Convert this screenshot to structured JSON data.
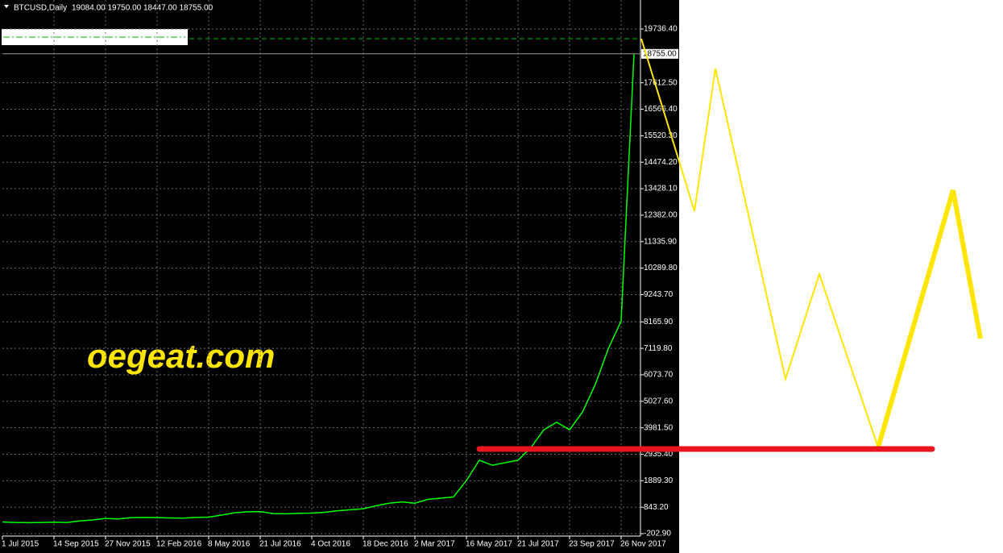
{
  "chart_data": {
    "type": "line",
    "title": "BTCUSD,Daily",
    "subtitle": "19084.00 19750.00 18447.00 18755.00",
    "watermark": "oegeat.com",
    "current_price": {
      "value": 18755,
      "label": "18755.00"
    },
    "categories": [
      "1 Jul 2015",
      null,
      null,
      null,
      "14 Sep 2015",
      null,
      null,
      null,
      "27 Nov 2015",
      null,
      null,
      null,
      "12 Feb 2016",
      null,
      null,
      null,
      "8 May 2016",
      null,
      null,
      null,
      "21 Jul 2016",
      null,
      null,
      null,
      "4 Oct 2016",
      null,
      null,
      null,
      "18 Dec 2016",
      null,
      null,
      null,
      "2 Mar 2017",
      null,
      null,
      null,
      "16 May 2017",
      null,
      null,
      null,
      "21 Jul 2017",
      null,
      null,
      null,
      "23 Sep 2017",
      null,
      null,
      null,
      "26 Nov 2017",
      null
    ],
    "series": [
      {
        "name": "BTCUSD",
        "color": "#00ff00",
        "values": [
          260,
          240,
          230,
          240,
          250,
          240,
          300,
          340,
          400,
          380,
          430,
          440,
          430,
          420,
          410,
          440,
          450,
          530,
          620,
          660,
          670,
          590,
          580,
          600,
          610,
          640,
          700,
          740,
          780,
          900,
          1000,
          1050,
          1000,
          1150,
          1200,
          1250,
          1900,
          2700,
          2500,
          2600,
          2700,
          3200,
          3900,
          4200,
          3900,
          4600,
          5700,
          7100,
          8200,
          18755
        ]
      }
    ],
    "ylim": [
      -298,
      20883
    ],
    "yticks": [
      {
        "value": -202.9,
        "label": "-202.90"
      },
      {
        "value": 843.2,
        "label": "843.20"
      },
      {
        "value": 1889.3,
        "label": "1889.30"
      },
      {
        "value": 2935.4,
        "label": "2935.40"
      },
      {
        "value": 3981.5,
        "label": "3981.50"
      },
      {
        "value": 5027.6,
        "label": "5027.60"
      },
      {
        "value": 6073.7,
        "label": "6073.70"
      },
      {
        "value": 7119.8,
        "label": "7119.80"
      },
      {
        "value": 8165.9,
        "label": "8165.90"
      },
      {
        "value": 9243.7,
        "label": "9243.70"
      },
      {
        "value": 10289.8,
        "label": "10289.80"
      },
      {
        "value": 11335.9,
        "label": "11335.90"
      },
      {
        "value": 12382,
        "label": "12382.00"
      },
      {
        "value": 13428.1,
        "label": "13428.10"
      },
      {
        "value": 14474.2,
        "label": "14474.20"
      },
      {
        "value": 15520.3,
        "label": "15520.30"
      },
      {
        "value": 16566.4,
        "label": "16566.40"
      },
      {
        "value": 17612.5,
        "label": "17612.50"
      },
      {
        "value": 19736.4,
        "label": "19736.40"
      }
    ],
    "grid": true
  }
}
